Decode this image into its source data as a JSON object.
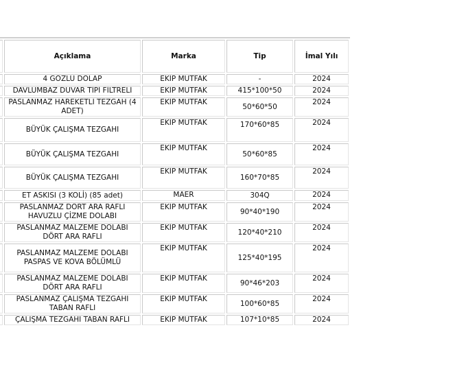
{
  "table": {
    "headers": [
      "",
      "Açıklama",
      "Marka",
      "Tip",
      "İmal Yılı"
    ],
    "rows": [
      {
        "aciklama": "4 GÖZLÜ DOLAP",
        "marka": "EKİP MUTFAK",
        "tip": "-",
        "yil": "2024"
      },
      {
        "aciklama": "DAVLUMBAZ DUVAR TİPİ FİLTRELİ",
        "marka": "EKİP MUTFAK",
        "tip": "415*100*50",
        "yil": "2024"
      },
      {
        "aciklama": "PASLANMAZ HAREKETLİ TEZGAH (4 ADET)",
        "marka": "EKİP MUTFAK",
        "tip": "50*60*50",
        "yil": "2024"
      },
      {
        "aciklama": "BÜYÜK ÇALIŞMA TEZGAHI",
        "marka": "EKİP MUTFAK",
        "tip": "170*60*85",
        "yil": "2024"
      },
      {
        "aciklama": "BÜYÜK ÇALIŞMA TEZGAHI",
        "marka": "EKİP MUTFAK",
        "tip": "50*60*85",
        "yil": "2024"
      },
      {
        "aciklama": "BÜYÜK ÇALIŞMA TEZGAHI",
        "marka": "EKİP MUTFAK",
        "tip": "160*70*85",
        "yil": "2024"
      },
      {
        "aciklama": "ET ASKISI (3 KOLİ) (85 adet)",
        "marka": "MAER",
        "tip": "304Q",
        "yil": "2024"
      },
      {
        "aciklama": "PASLANMAZ DÖRT ARA RAFLI HAVUZLU ÇİZME DOLABI",
        "marka": "EKİP MUTFAK",
        "tip": "90*40*190",
        "yil": "2024"
      },
      {
        "aciklama": "PASLANMAZ MALZEME DOLABI DÖRT ARA RAFLI",
        "marka": "EKİP MUTFAK",
        "tip": "120*40*210",
        "yil": "2024"
      },
      {
        "aciklama": "PASLANMAZ MALZEME DOLABI PASPAS VE KOVA BÖLÜMLÜ",
        "marka": "EKİP MUTFAK",
        "tip": "125*40*195",
        "yil": "2024"
      },
      {
        "aciklama": "PASLANMAZ MALZEME DOLABI DÖRT ARA RAFLI",
        "marka": "EKİP MUTFAK",
        "tip": "90*46*203",
        "yil": "2024"
      },
      {
        "aciklama": "PASLANMAZ ÇALIŞMA TEZGAHI TABAN RAFLI",
        "marka": "EKİP MUTFAK",
        "tip": "100*60*85",
        "yil": "2024"
      },
      {
        "aciklama": "ÇALIŞMA TEZGAHI TABAN RAFLI",
        "marka": "EKİP MUTFAK",
        "tip": "107*10*85",
        "yil": "2024"
      }
    ]
  }
}
